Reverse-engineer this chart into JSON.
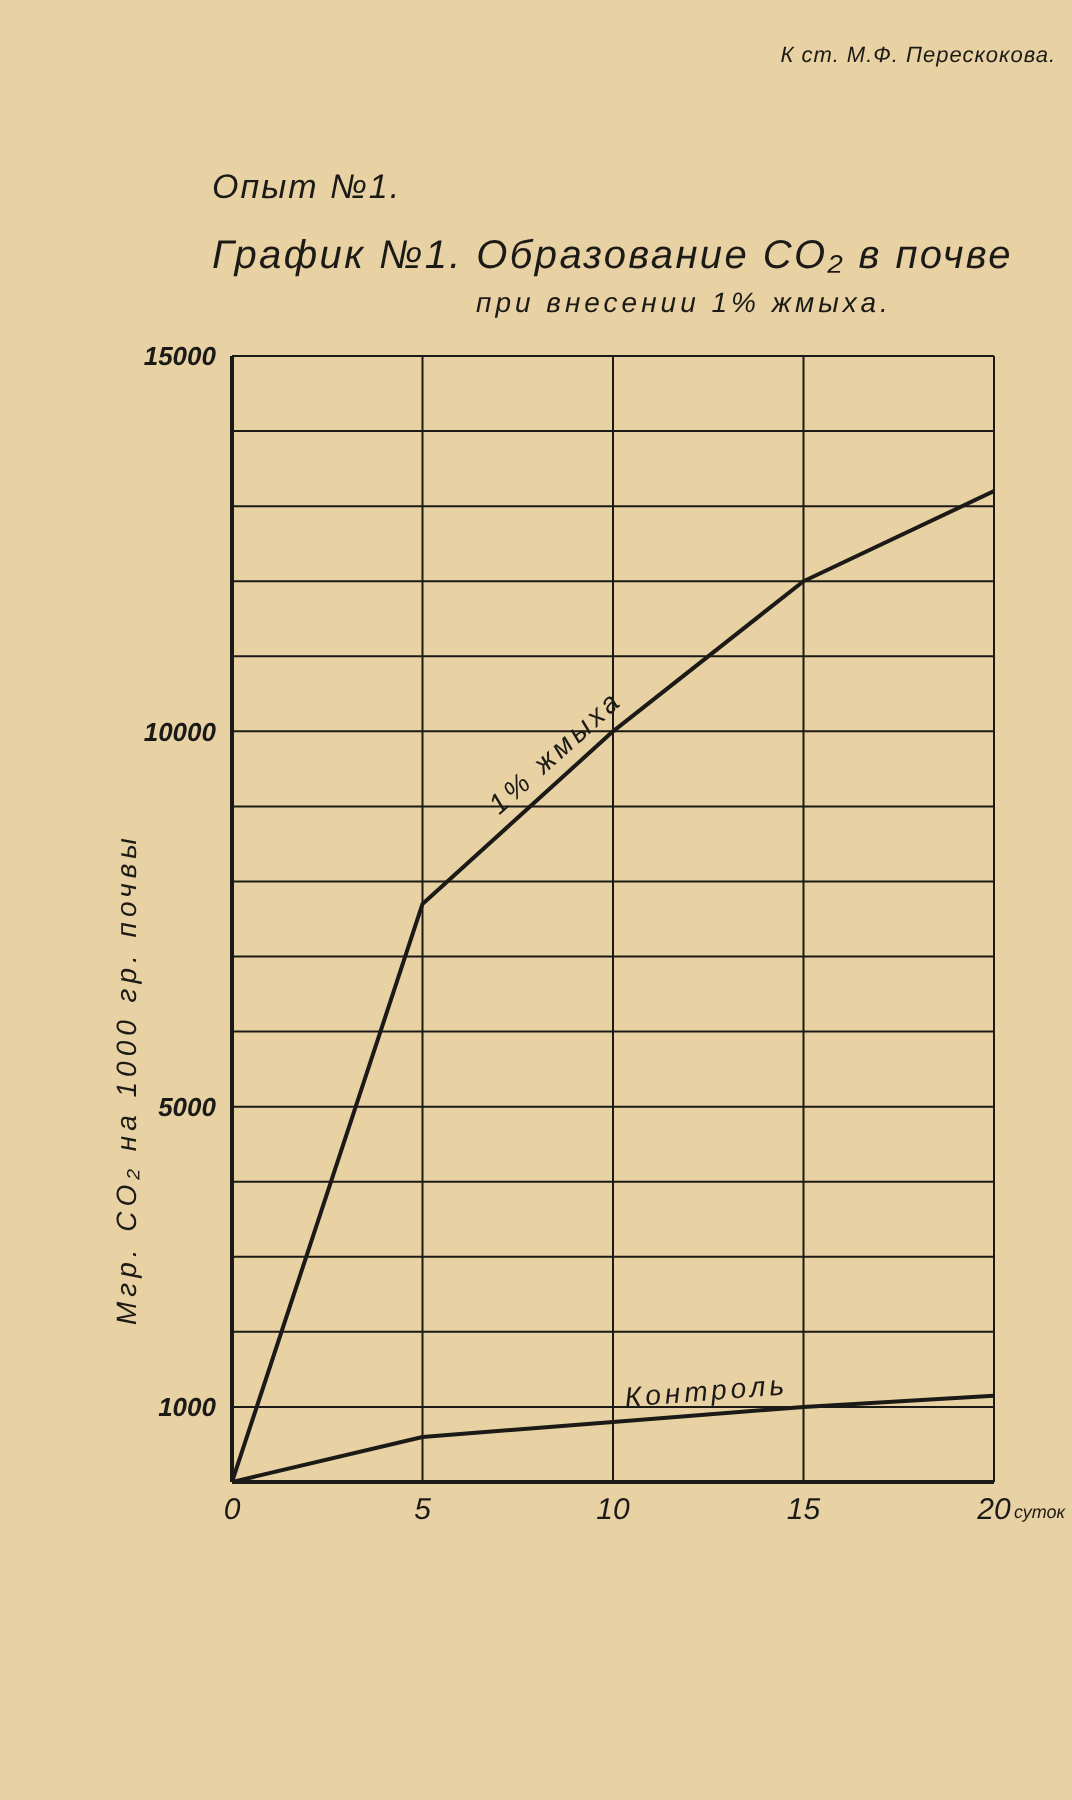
{
  "chart_data": {
    "type": "line",
    "title": "График №1. Образование CO₂ в почве",
    "subtitle": "при внесении 1% жмыха.",
    "xlabel": "суток",
    "ylabel": "Мгр. CO₂ на 1000 гр. почвы",
    "annotations": [
      "К ст. М.Ф. Перескокова.",
      "Опыт №1."
    ],
    "x": [
      0,
      5,
      10,
      15,
      20
    ],
    "series": [
      {
        "name": "1% жмыха",
        "color": "#1c1a16",
        "values": [
          0,
          7700,
          10000,
          12000,
          13200
        ]
      },
      {
        "name": "Контроль",
        "color": "#1c1a16",
        "values": [
          0,
          600,
          800,
          1000,
          1150
        ]
      }
    ],
    "xlim": [
      0,
      20
    ],
    "xticks": [
      0,
      5,
      10,
      15,
      20
    ],
    "ylim": [
      0,
      15000
    ],
    "yticks": [
      {
        "value": 0,
        "label": null
      },
      1000,
      {
        "value": 2000,
        "label": null
      },
      {
        "value": 3000,
        "label": null
      },
      {
        "value": 4000,
        "label": null
      },
      5000,
      {
        "value": 6000,
        "label": null
      },
      {
        "value": 7000,
        "label": null
      },
      {
        "value": 8000,
        "label": null
      },
      {
        "value": 9000,
        "label": null
      },
      10000,
      {
        "value": 11000,
        "label": null
      },
      {
        "value": 12000,
        "label": null
      },
      {
        "value": 13000,
        "label": null
      },
      {
        "value": 14000,
        "label": null
      },
      15000
    ],
    "grid": true,
    "marker": "none",
    "line_style": "solid"
  }
}
